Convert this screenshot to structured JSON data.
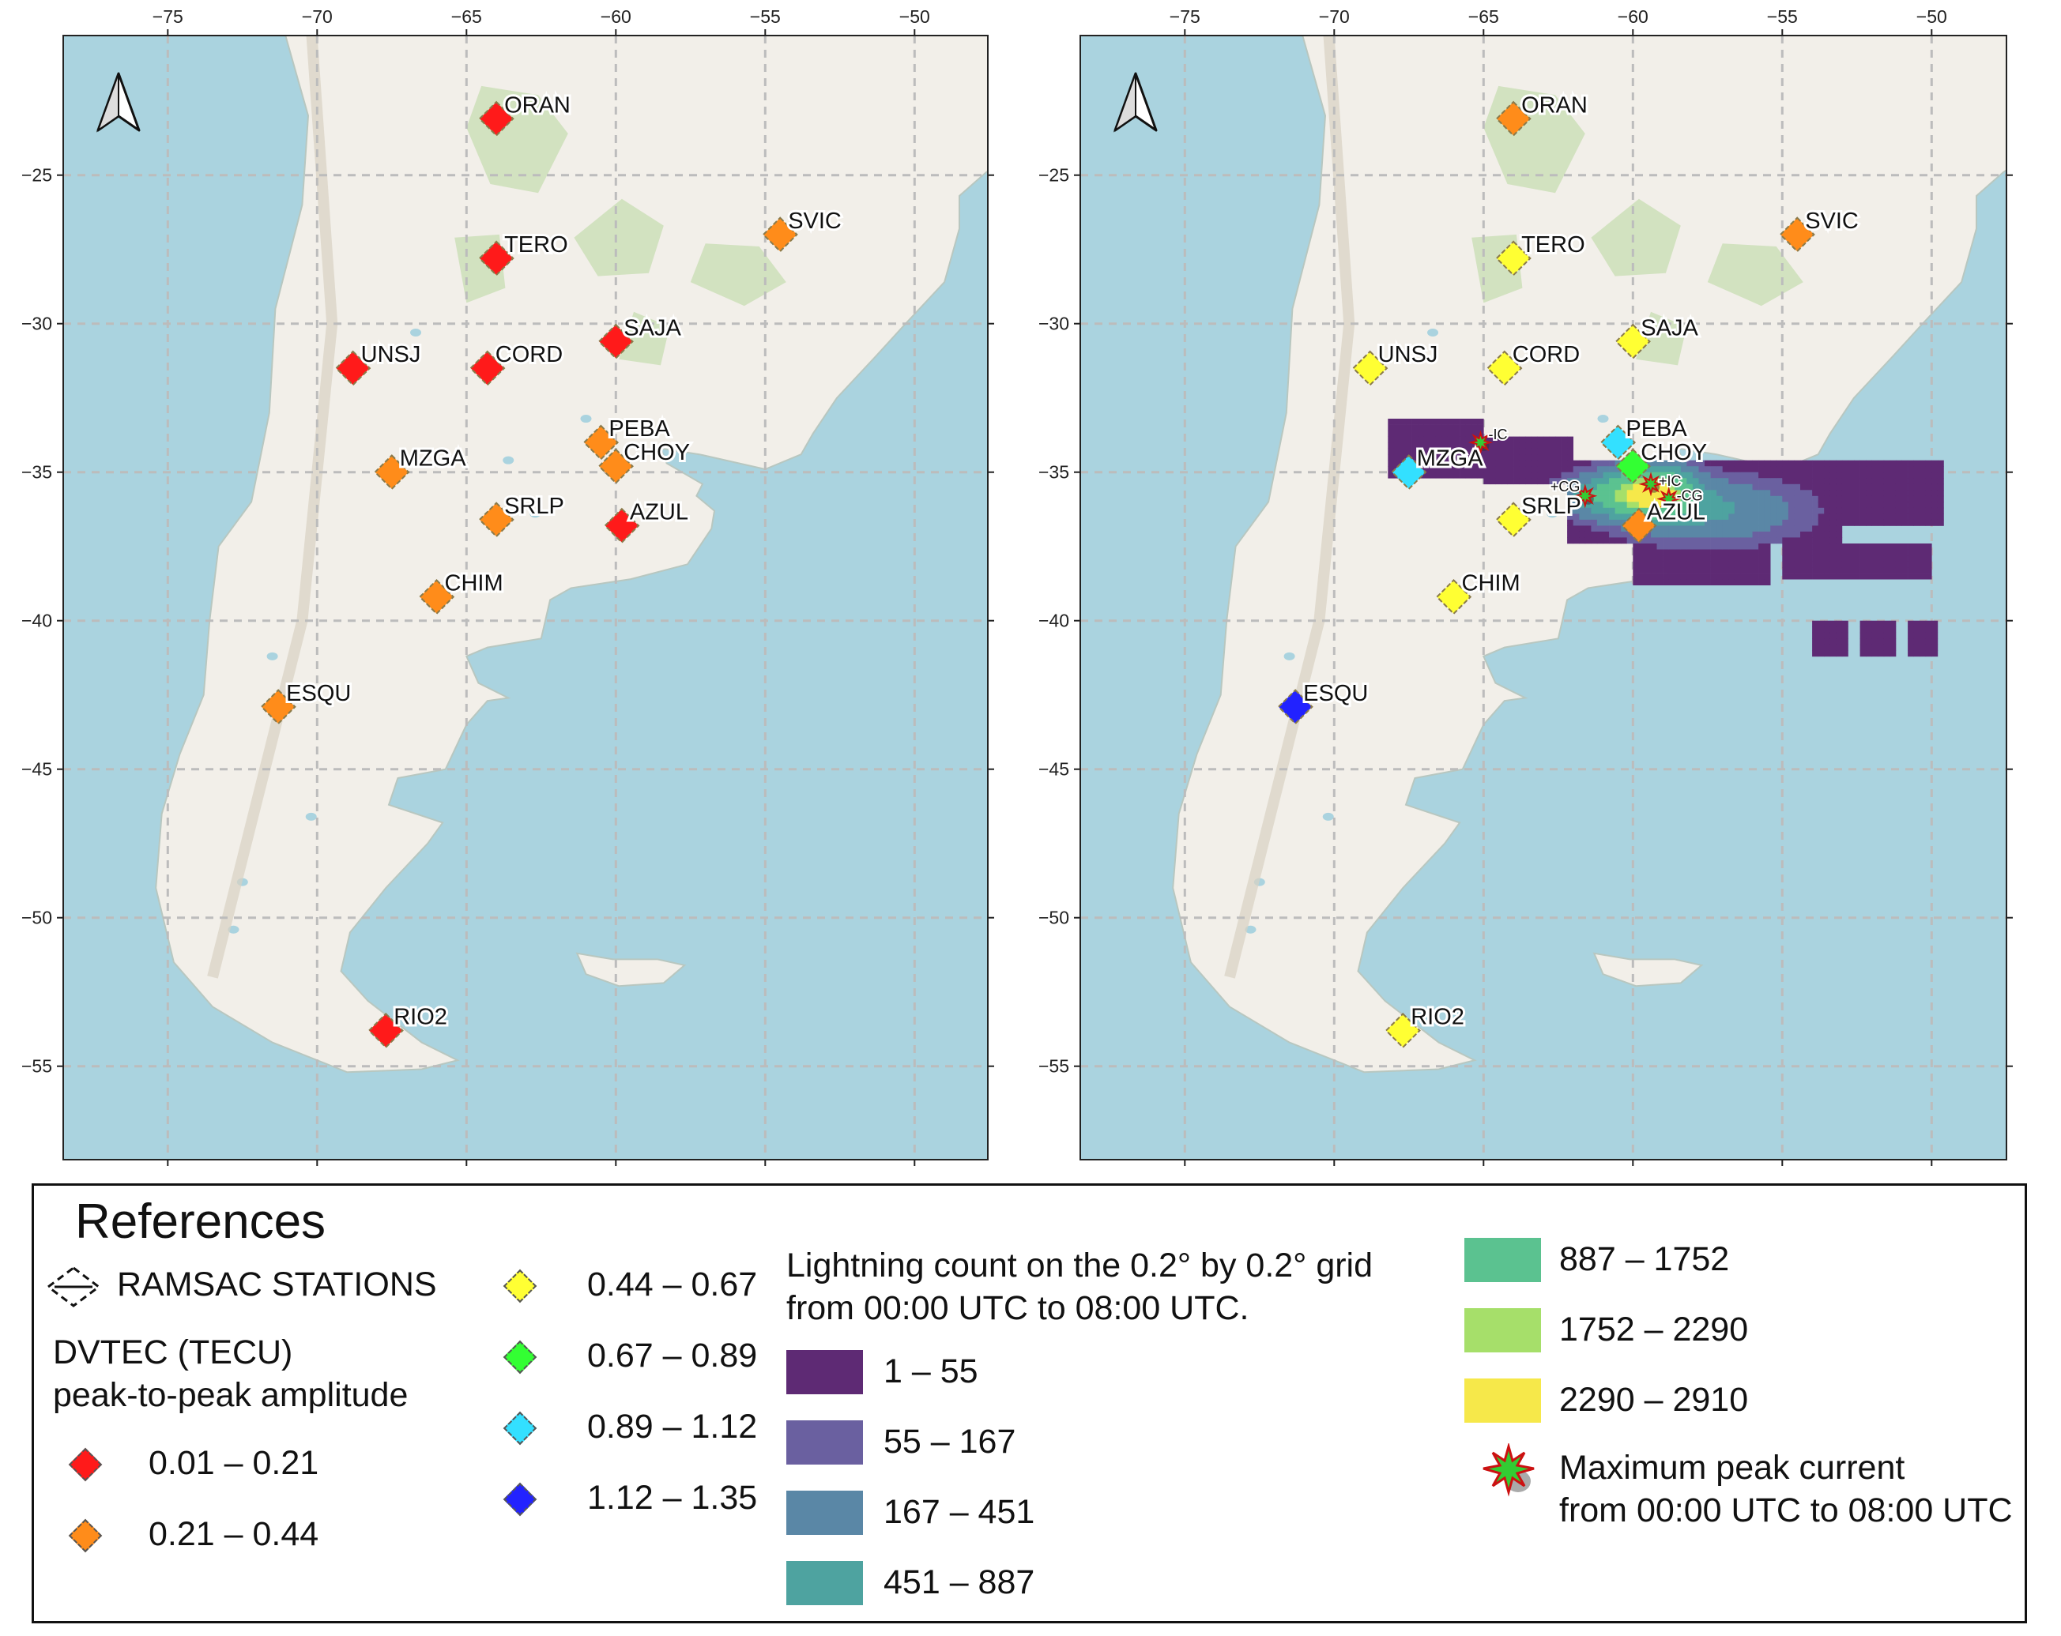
{
  "x_ticks": [
    "−75",
    "−70",
    "−65",
    "−60",
    "−55",
    "−50"
  ],
  "y_ticks": [
    "−25",
    "−30",
    "−35",
    "−40",
    "−45",
    "−50",
    "−55"
  ],
  "colors": {
    "ocean": "#aad3df",
    "land": "#f2efe9",
    "green_areas": "#cddfb8",
    "class_0": "#ff1a1a",
    "class_1": "#ff8c1a",
    "class_2": "#ffff33",
    "class_3": "#33ff33",
    "class_4": "#33e0ff",
    "class_5": "#2222ff"
  },
  "stations": [
    {
      "name": "ORAN",
      "lon": -64.0,
      "lat": -23.1,
      "left_class": 0,
      "right_class": 1
    },
    {
      "name": "SVIC",
      "lon": -54.5,
      "lat": -27.0,
      "left_class": 1,
      "right_class": 1
    },
    {
      "name": "TERO",
      "lon": -64.0,
      "lat": -27.8,
      "left_class": 0,
      "right_class": 2
    },
    {
      "name": "SAJA",
      "lon": -60.0,
      "lat": -30.6,
      "left_class": 0,
      "right_class": 2
    },
    {
      "name": "UNSJ",
      "lon": -68.8,
      "lat": -31.5,
      "left_class": 0,
      "right_class": 2
    },
    {
      "name": "CORD",
      "lon": -64.3,
      "lat": -31.5,
      "left_class": 0,
      "right_class": 2
    },
    {
      "name": "PEBA",
      "lon": -60.5,
      "lat": -34.0,
      "left_class": 1,
      "right_class": 4
    },
    {
      "name": "MZGA",
      "lon": -67.5,
      "lat": -35.0,
      "left_class": 1,
      "right_class": 4
    },
    {
      "name": "CHOY",
      "lon": -60.0,
      "lat": -34.8,
      "left_class": 1,
      "right_class": 3
    },
    {
      "name": "SRLP",
      "lon": -64.0,
      "lat": -36.6,
      "left_class": 1,
      "right_class": 2
    },
    {
      "name": "AZUL",
      "lon": -59.8,
      "lat": -36.8,
      "left_class": 0,
      "right_class": 1
    },
    {
      "name": "CHIM",
      "lon": -66.0,
      "lat": -39.2,
      "left_class": 1,
      "right_class": 2
    },
    {
      "name": "ESQU",
      "lon": -71.3,
      "lat": -42.9,
      "left_class": 1,
      "right_class": 5
    },
    {
      "name": "RIO2",
      "lon": -67.7,
      "lat": -53.8,
      "left_class": 0,
      "right_class": 2
    }
  ],
  "peak_markers": [
    {
      "label": "-IC",
      "lon": -65.1,
      "lat": -34.0
    },
    {
      "label": "+CG",
      "lon": -61.6,
      "lat": -35.8
    },
    {
      "label": "+IC",
      "lon": -59.4,
      "lat": -35.4
    },
    {
      "label": "-CG",
      "lon": -58.8,
      "lat": -35.9
    }
  ],
  "legend": {
    "title": "References",
    "stations_label": "RAMSAC STATIONS",
    "dvtec_line1": "DVTEC (TECU)",
    "dvtec_line2": "peak-to-peak amplitude",
    "amp_classes": [
      "0.01 – 0.21",
      "0.21 – 0.44",
      "0.44 – 0.67",
      "0.67 – 0.89",
      "0.89 – 1.12",
      "1.12 – 1.35"
    ],
    "lightning_line1": "Lightning count on the 0.2° by  0.2° grid",
    "lightning_line2": "from 00:00 UTC to  08:00 UTC.",
    "count_classes": [
      {
        "label": "1 – 55",
        "color": "#5e2a74"
      },
      {
        "label": "55 – 167",
        "color": "#6a60a0"
      },
      {
        "label": "167 – 451",
        "color": "#5a87a6"
      },
      {
        "label": "451 – 887",
        "color": "#4ea3a0"
      },
      {
        "label": "887 – 1752",
        "color": "#5bc290"
      },
      {
        "label": "1752 – 2290",
        "color": "#a6df6a"
      },
      {
        "label": "2290 – 2910",
        "color": "#f6e84a"
      }
    ],
    "peak_line1": "Maximum peak current",
    "peak_line2": "from 00:00 UTC to 08:00 UTC"
  }
}
